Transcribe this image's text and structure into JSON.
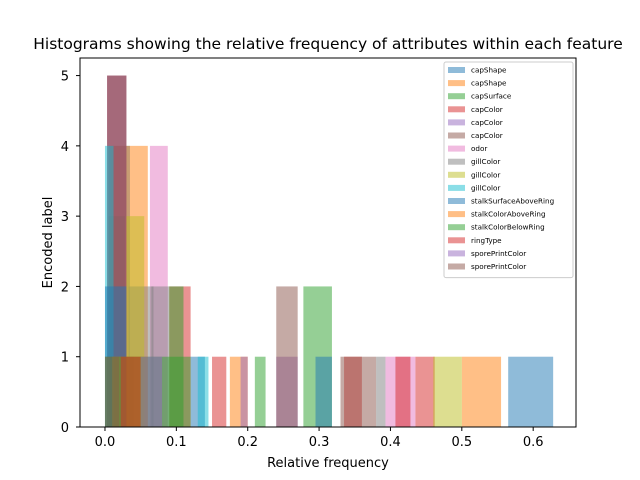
{
  "chart_data": {
    "type": "bar",
    "title": "Histograms showing the relative frequency of attributes within each feature",
    "xlabel": "Relative frequency",
    "ylabel": "Encoded label",
    "xlim": [
      -0.035,
      0.66
    ],
    "ylim": [
      0,
      5.25
    ],
    "xticks": [
      "0.0",
      "0.1",
      "0.2",
      "0.3",
      "0.4",
      "0.5",
      "0.6"
    ],
    "yticks": [
      "0",
      "1",
      "2",
      "3",
      "4",
      "5"
    ],
    "grid": false,
    "legend_position": "top-right",
    "bar_alpha": 0.5,
    "series": [
      {
        "name": "capShape",
        "color": "#1f77b4",
        "bars": [
          {
            "x0": 0.005,
            "x1": 0.035,
            "y": 4
          },
          {
            "x0": 0.01,
            "x1": 0.04,
            "y": 1
          },
          {
            "x0": 0.12,
            "x1": 0.14,
            "y": 1
          },
          {
            "x0": 0.565,
            "x1": 0.628,
            "y": 1
          }
        ]
      },
      {
        "name": "capShape",
        "color": "#ff7f0e",
        "bars": [
          {
            "x0": 0.008,
            "x1": 0.06,
            "y": 4
          },
          {
            "x0": 0.5,
            "x1": 0.555,
            "y": 1
          }
        ]
      },
      {
        "name": "capSurface",
        "color": "#2ca02c",
        "bars": [
          {
            "x0": 0.005,
            "x1": 0.028,
            "y": 3
          },
          {
            "x0": 0.278,
            "x1": 0.318,
            "y": 2
          }
        ]
      },
      {
        "name": "capColor",
        "color": "#d62728",
        "bars": [
          {
            "x0": 0.003,
            "x1": 0.03,
            "y": 5
          },
          {
            "x0": 0.09,
            "x1": 0.12,
            "y": 2
          },
          {
            "x0": 0.335,
            "x1": 0.36,
            "y": 1
          },
          {
            "x0": 0.435,
            "x1": 0.462,
            "y": 1
          }
        ]
      },
      {
        "name": "capColor",
        "color": "#9467bd",
        "bars": [
          {
            "x0": 0.003,
            "x1": 0.03,
            "y": 5
          },
          {
            "x0": 0.24,
            "x1": 0.27,
            "y": 1
          }
        ]
      },
      {
        "name": "capColor",
        "color": "#8c564b",
        "bars": [
          {
            "x0": 0.003,
            "x1": 0.03,
            "y": 5
          },
          {
            "x0": 0.24,
            "x1": 0.27,
            "y": 2
          },
          {
            "x0": 0.36,
            "x1": 0.38,
            "y": 1
          }
        ]
      },
      {
        "name": "odor",
        "color": "#e377c2",
        "bars": [
          {
            "x0": 0.063,
            "x1": 0.088,
            "y": 4
          },
          {
            "x0": 0.393,
            "x1": 0.435,
            "y": 1
          }
        ]
      },
      {
        "name": "gillColor",
        "color": "#7f7f7f",
        "bars": [
          {
            "x0": 0.033,
            "x1": 0.068,
            "y": 2
          },
          {
            "x0": 0.065,
            "x1": 0.09,
            "y": 2
          },
          {
            "x0": 0.38,
            "x1": 0.393,
            "y": 1
          }
        ]
      },
      {
        "name": "gillColor",
        "color": "#bcbd22",
        "bars": [
          {
            "x0": 0.03,
            "x1": 0.055,
            "y": 3
          },
          {
            "x0": 0.46,
            "x1": 0.5,
            "y": 1
          }
        ]
      },
      {
        "name": "gillColor",
        "color": "#17becf",
        "bars": [
          {
            "x0": 0.0,
            "x1": 0.012,
            "y": 4
          },
          {
            "x0": 0.13,
            "x1": 0.145,
            "y": 1
          }
        ]
      },
      {
        "name": "stalkSurfaceAboveRing",
        "color": "#1f77b4",
        "bars": [
          {
            "x0": 0.0,
            "x1": 0.03,
            "y": 2
          },
          {
            "x0": 0.295,
            "x1": 0.318,
            "y": 1
          }
        ]
      },
      {
        "name": "stalkColorAboveRing",
        "color": "#ff7f0e",
        "bars": [
          {
            "x0": 0.01,
            "x1": 0.06,
            "y": 1
          },
          {
            "x0": 0.175,
            "x1": 0.2,
            "y": 1
          }
        ]
      },
      {
        "name": "stalkColorBelowRing",
        "color": "#2ca02c",
        "bars": [
          {
            "x0": 0.0,
            "x1": 0.12,
            "y": 1
          },
          {
            "x0": 0.09,
            "x1": 0.11,
            "y": 2
          },
          {
            "x0": 0.21,
            "x1": 0.225,
            "y": 1
          }
        ]
      },
      {
        "name": "ringType",
        "color": "#d62728",
        "bars": [
          {
            "x0": 0.022,
            "x1": 0.05,
            "y": 1
          },
          {
            "x0": 0.15,
            "x1": 0.17,
            "y": 1
          },
          {
            "x0": 0.407,
            "x1": 0.428,
            "y": 1
          }
        ]
      },
      {
        "name": "sporePrintColor",
        "color": "#9467bd",
        "bars": [
          {
            "x0": 0.05,
            "x1": 0.08,
            "y": 1
          },
          {
            "x0": 0.19,
            "x1": 0.2,
            "y": 1
          }
        ]
      },
      {
        "name": "sporePrintColor",
        "color": "#8c564b",
        "bars": [
          {
            "x0": 0.0,
            "x1": 0.02,
            "y": 1
          },
          {
            "x0": 0.33,
            "x1": 0.36,
            "y": 1
          }
        ]
      }
    ]
  }
}
